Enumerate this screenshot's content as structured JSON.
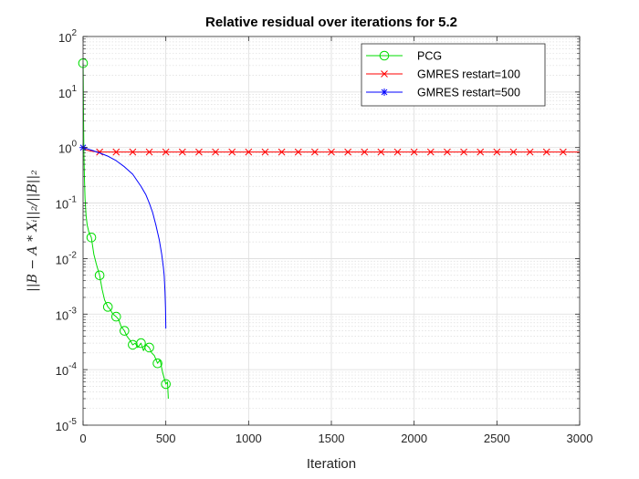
{
  "chart_data": {
    "type": "line",
    "title": "Relative residual over iterations for 5.2",
    "xlabel": "Iteration",
    "ylabel": "||B − A * Xᵢ||₂/||B||₂",
    "xlim": [
      0,
      3000
    ],
    "ylim": [
      1e-05,
      100
    ],
    "yscale": "log",
    "x_ticks": [
      0,
      500,
      1000,
      1500,
      2000,
      2500,
      3000
    ],
    "x_tick_labels": [
      "0",
      "500",
      "1000",
      "1500",
      "2000",
      "2500",
      "3000"
    ],
    "y_ticks": [
      1e-05,
      0.0001,
      0.001,
      0.01,
      0.1,
      1,
      10,
      100
    ],
    "y_tick_labels": [
      {
        "base": "10",
        "exp": "-5"
      },
      {
        "base": "10",
        "exp": "-4"
      },
      {
        "base": "10",
        "exp": "-3"
      },
      {
        "base": "10",
        "exp": "-2"
      },
      {
        "base": "10",
        "exp": "-1"
      },
      {
        "base": "10",
        "exp": "0"
      },
      {
        "base": "10",
        "exp": "1"
      },
      {
        "base": "10",
        "exp": "2"
      }
    ],
    "grid": true,
    "minor_grid": true,
    "legend_position": "top-right",
    "series": [
      {
        "name": "PCG",
        "color": "#00dd00",
        "marker": "circle",
        "x": [
          0,
          1,
          2,
          3,
          5,
          8,
          12,
          18,
          25,
          35,
          50,
          65,
          80,
          100,
          115,
          130,
          150,
          165,
          180,
          200,
          215,
          230,
          250,
          265,
          280,
          300,
          315,
          330,
          350,
          365,
          380,
          400,
          415,
          430,
          450,
          465,
          480,
          500,
          510,
          515
        ],
        "y": [
          33,
          20,
          8,
          3,
          0.8,
          0.3,
          0.12,
          0.06,
          0.04,
          0.03,
          0.024,
          0.012,
          0.008,
          0.005,
          0.0028,
          0.0018,
          0.00135,
          0.0012,
          0.001,
          0.0009,
          0.0008,
          0.0006,
          0.0005,
          0.0004,
          0.00035,
          0.00028,
          0.0003,
          0.00025,
          0.0003,
          0.00022,
          0.00028,
          0.00025,
          0.0002,
          0.00018,
          0.00013,
          0.00015,
          9e-05,
          5.5e-05,
          6e-05,
          3e-05
        ],
        "marker_x": [
          0,
          50,
          100,
          150,
          200,
          250,
          300,
          350,
          400,
          450,
          500
        ],
        "marker_y": [
          33,
          0.024,
          0.005,
          0.00135,
          0.0009,
          0.0005,
          0.00028,
          0.0003,
          0.00025,
          0.00013,
          5.5e-05
        ]
      },
      {
        "name": "GMRES restart=100",
        "color": "#ff0000",
        "marker": "x",
        "x": [
          0,
          20,
          50,
          100,
          3000
        ],
        "y": [
          1.0,
          0.9,
          0.86,
          0.83,
          0.83
        ],
        "marker_x": [
          100,
          200,
          300,
          400,
          500,
          600,
          700,
          800,
          900,
          1000,
          1100,
          1200,
          1300,
          1400,
          1500,
          1600,
          1700,
          1800,
          1900,
          2000,
          2100,
          2200,
          2300,
          2400,
          2500,
          2600,
          2700,
          2800,
          2900
        ],
        "marker_y": [
          0.83,
          0.83,
          0.83,
          0.83,
          0.83,
          0.83,
          0.83,
          0.83,
          0.83,
          0.83,
          0.83,
          0.83,
          0.83,
          0.83,
          0.83,
          0.83,
          0.83,
          0.83,
          0.83,
          0.83,
          0.83,
          0.83,
          0.83,
          0.83,
          0.83,
          0.83,
          0.83,
          0.83,
          0.83
        ]
      },
      {
        "name": "GMRES restart=500",
        "color": "#0000ff",
        "marker": "asterisk",
        "x": [
          0,
          25,
          50,
          100,
          150,
          200,
          250,
          300,
          350,
          380,
          400,
          420,
          440,
          460,
          475,
          485,
          490,
          495,
          498,
          500
        ],
        "y": [
          1.0,
          0.95,
          0.9,
          0.8,
          0.7,
          0.58,
          0.45,
          0.33,
          0.2,
          0.14,
          0.1,
          0.068,
          0.04,
          0.022,
          0.012,
          0.007,
          0.005,
          0.0025,
          0.0013,
          0.00055
        ],
        "marker_x": [
          0
        ],
        "marker_y": [
          1.0
        ]
      }
    ]
  }
}
